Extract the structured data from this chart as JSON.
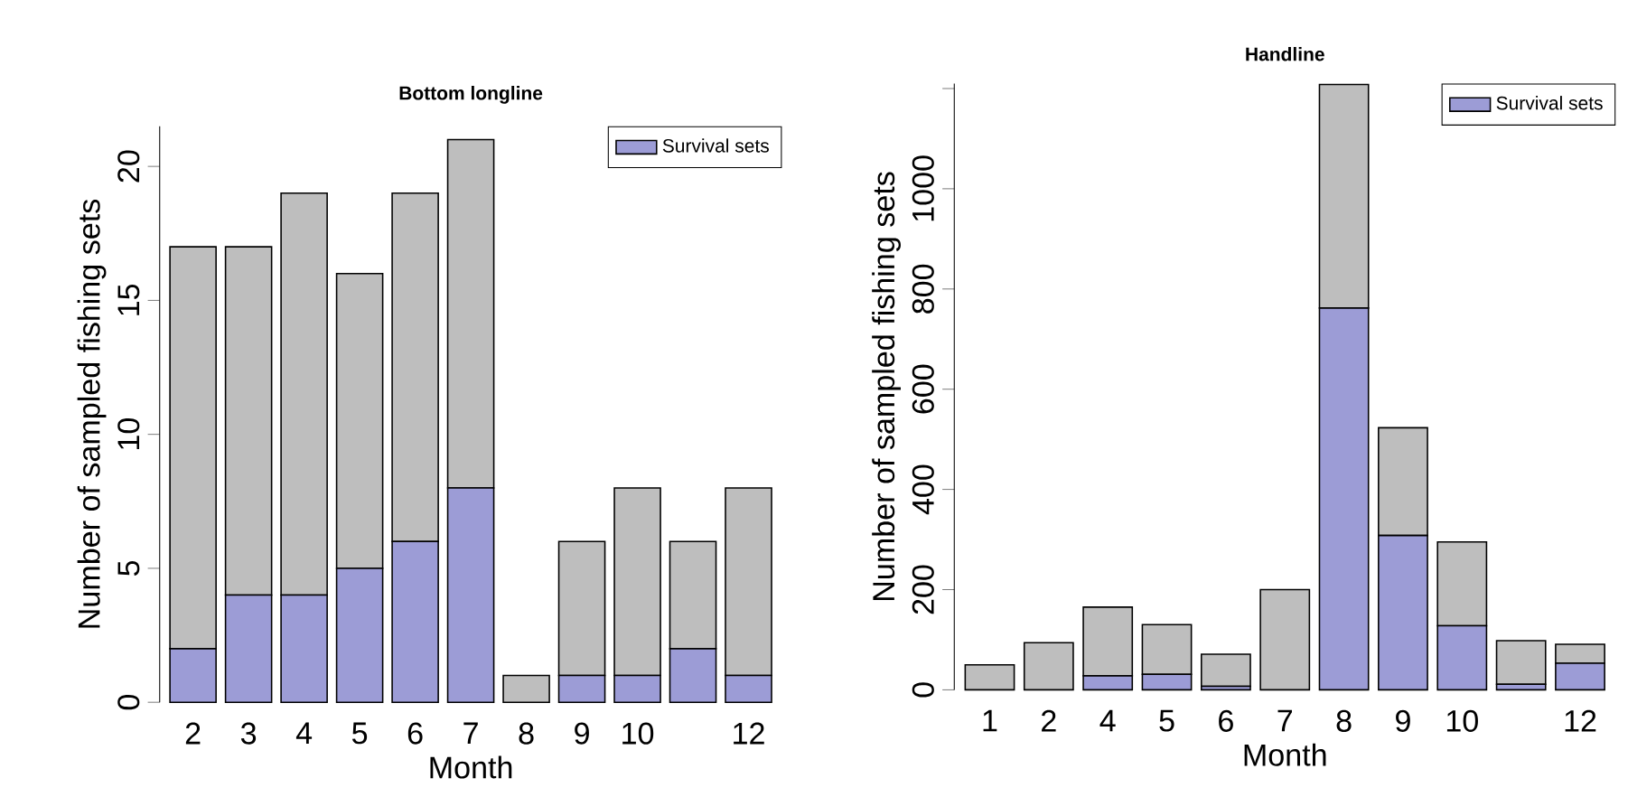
{
  "chart_data": [
    {
      "type": "bar",
      "title": "Bottom longline",
      "xlabel": "Month",
      "ylabel": "Number of sampled fishing sets",
      "categories": [
        "2",
        "3",
        "4",
        "5",
        "6",
        "7",
        "8",
        "9",
        "10",
        null,
        "12"
      ],
      "stacked": true,
      "ylim": [
        0,
        21.5
      ],
      "yticks": [
        0,
        5,
        10,
        15,
        20
      ],
      "legend": "top right",
      "series": [
        {
          "name": "Survival sets",
          "color": "#9c9cd6",
          "values": [
            2,
            4,
            4,
            5,
            6,
            8,
            0,
            1,
            1,
            2,
            1
          ]
        },
        {
          "color": "#bebebe",
          "values": [
            15,
            13,
            15,
            11,
            13,
            13,
            1,
            5,
            7,
            4,
            7
          ]
        }
      ]
    },
    {
      "type": "bar",
      "title": "Handline",
      "xlabel": "Month",
      "ylabel": "Number of sampled fishing sets",
      "categories": [
        "1",
        "2",
        "4",
        "5",
        "6",
        "7",
        "8",
        "9",
        "10",
        null,
        "12"
      ],
      "stacked": true,
      "ylim": [
        0,
        1210
      ],
      "yticks": [
        0,
        200,
        400,
        600,
        800,
        1000,
        {
          "value": 1200,
          "label": null
        }
      ],
      "legend": "top right",
      "series": [
        {
          "name": "Survival sets",
          "color": "#9c9cd6",
          "values": [
            0,
            0,
            28,
            31,
            7,
            0,
            762,
            308,
            128,
            11,
            53
          ]
        },
        {
          "color": "#bebebe",
          "values": [
            50,
            94,
            137,
            99,
            64,
            200,
            446,
            215,
            167,
            87,
            38
          ]
        }
      ]
    }
  ]
}
